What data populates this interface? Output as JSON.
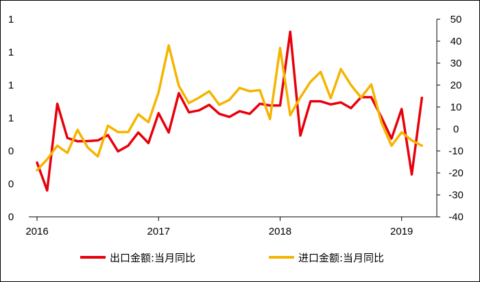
{
  "chart_data": {
    "type": "line",
    "title": "",
    "xlabel": "",
    "ylabel": "",
    "x_tick_labels": [
      "2016",
      "2017",
      "2018",
      "2019"
    ],
    "y_left_tick_labels": [
      "0",
      "0",
      "0",
      "1",
      "1",
      "1",
      "1"
    ],
    "y_right_tick_labels": [
      "50",
      "40",
      "30",
      "20",
      "10",
      "0",
      "-10",
      "-20",
      "-30",
      "-40"
    ],
    "y_right_range": [
      -40,
      50
    ],
    "grid": false,
    "legend_position": "bottom",
    "x": [
      "2016-01",
      "2016-02",
      "2016-03",
      "2016-04",
      "2016-05",
      "2016-06",
      "2016-07",
      "2016-08",
      "2016-09",
      "2016-10",
      "2016-11",
      "2016-12",
      "2017-01",
      "2017-02",
      "2017-03",
      "2017-04",
      "2017-05",
      "2017-06",
      "2017-07",
      "2017-08",
      "2017-09",
      "2017-10",
      "2017-11",
      "2017-12",
      "2018-01",
      "2018-02",
      "2018-03",
      "2018-04",
      "2018-05",
      "2018-06",
      "2018-07",
      "2018-08",
      "2018-09",
      "2018-10",
      "2018-11",
      "2018-12",
      "2019-01",
      "2019-02",
      "2019-03"
    ],
    "series": [
      {
        "name": "出口金额:当月同比",
        "color": "#e8000b",
        "axis": "right",
        "values": [
          -15.3,
          -28.0,
          11.5,
          -4.1,
          -5.6,
          -5.5,
          -5.2,
          -2.8,
          -10.2,
          -7.6,
          -1.6,
          -6.4,
          7.2,
          -1.6,
          16.3,
          7.6,
          8.5,
          11.0,
          6.9,
          5.5,
          8.1,
          6.9,
          11.5,
          10.7,
          10.7,
          44.3,
          -3.0,
          12.6,
          12.6,
          11.2,
          12.1,
          9.5,
          14.5,
          14.5,
          5.4,
          -4.4,
          9.1,
          -20.7,
          14.2
        ]
      },
      {
        "name": "进口金额:当月同比",
        "color": "#f5b400",
        "axis": "right",
        "values": [
          -18.8,
          -13.8,
          -7.6,
          -10.9,
          -0.4,
          -8.4,
          -12.5,
          1.5,
          -1.4,
          -1.4,
          6.7,
          3.1,
          16.7,
          38.1,
          19.6,
          11.8,
          14.3,
          17.2,
          11.0,
          13.3,
          18.7,
          17.2,
          17.7,
          4.5,
          36.9,
          6.3,
          14.4,
          21.5,
          26.0,
          14.0,
          27.3,
          20.0,
          14.3,
          20.3,
          3.0,
          -7.6,
          -1.5,
          -5.2,
          -7.6
        ]
      }
    ]
  }
}
